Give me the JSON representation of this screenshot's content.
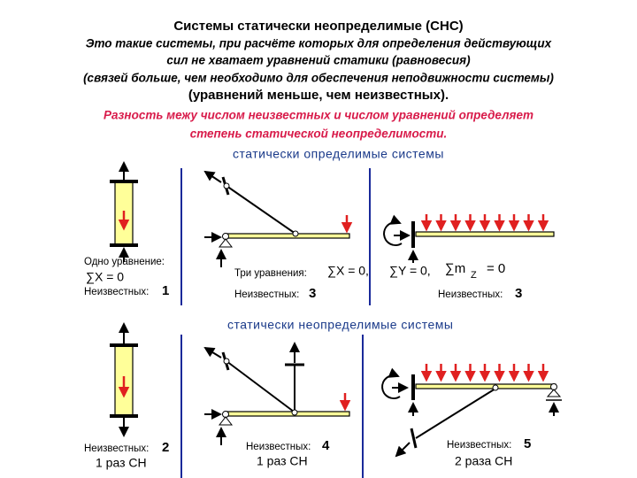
{
  "header": {
    "title": "Системы статически неопределимые (СНС)",
    "definition": [
      "Это такие системы, при расчёте которых для определения действующих",
      "сил не хватает уравнений статики (равновесия)"
    ],
    "note1": "(связей больше, чем необходимо для обеспечения неподвижности системы)",
    "note2": "(уравнений меньше, чем неизвестных).",
    "emphasis": [
      "Разность межу числом неизвестных и числом уравнений определяет",
      "степень статической неопределимости."
    ]
  },
  "determinate": {
    "heading": "статически определимые системы",
    "panels": [
      {
        "equations_label": "Одно уравнение:",
        "equation": "∑X = 0",
        "unknowns_label": "Неизвестных:",
        "unknowns": 1
      },
      {
        "equations_label": "Три уравнения:",
        "equations": [
          "∑X = 0,",
          "∑Y = 0,",
          "∑m"
        ],
        "subscript": "Z",
        "equation_end": "= 0",
        "unknowns_label": "Неизвестных:",
        "unknowns": 3
      },
      {
        "unknowns_label": "Неизвестных:",
        "unknowns": 3
      }
    ]
  },
  "indeterminate": {
    "heading": "статически неопределимые системы",
    "panels": [
      {
        "unknowns_label": "Неизвестных:",
        "unknowns": 2,
        "degree": "1 раз СН"
      },
      {
        "unknowns_label": "Неизвестных:",
        "unknowns": 4,
        "degree": "1 раз СН"
      },
      {
        "unknowns_label": "Неизвестных:",
        "unknowns": 5,
        "degree": "2 раза СН"
      }
    ]
  }
}
